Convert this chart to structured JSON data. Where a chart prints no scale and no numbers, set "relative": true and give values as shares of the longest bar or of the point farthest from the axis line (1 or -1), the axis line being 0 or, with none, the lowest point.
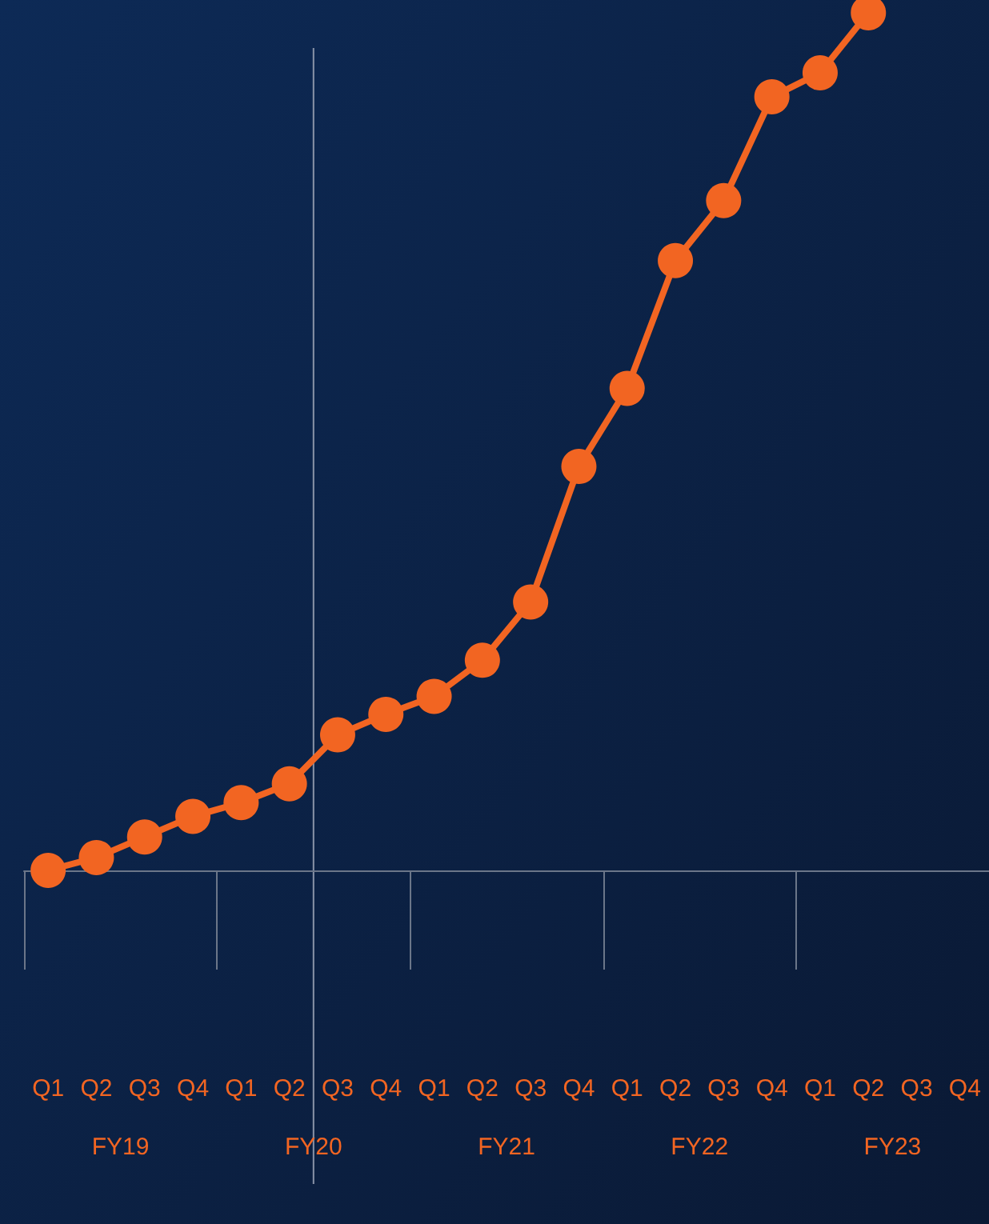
{
  "chart_data": {
    "type": "line",
    "relative": true,
    "color": "#f26522",
    "marker": "circle",
    "categories": [
      "Q1",
      "Q2",
      "Q3",
      "Q4",
      "Q1",
      "Q2",
      "Q3",
      "Q4",
      "Q1",
      "Q2",
      "Q3",
      "Q4",
      "Q1",
      "Q2",
      "Q3",
      "Q4",
      "Q1",
      "Q2",
      "Q3",
      "Q4"
    ],
    "values": [
      0,
      0.015,
      0.039,
      0.063,
      0.079,
      0.101,
      0.158,
      0.182,
      0.203,
      0.245,
      0.313,
      0.471,
      0.562,
      0.711,
      0.781,
      0.902,
      0.93,
      1,
      null,
      null
    ],
    "annotations": [
      "FY19",
      "FY20",
      "FY21",
      "FY22",
      "FY23"
    ],
    "grid": false
  }
}
